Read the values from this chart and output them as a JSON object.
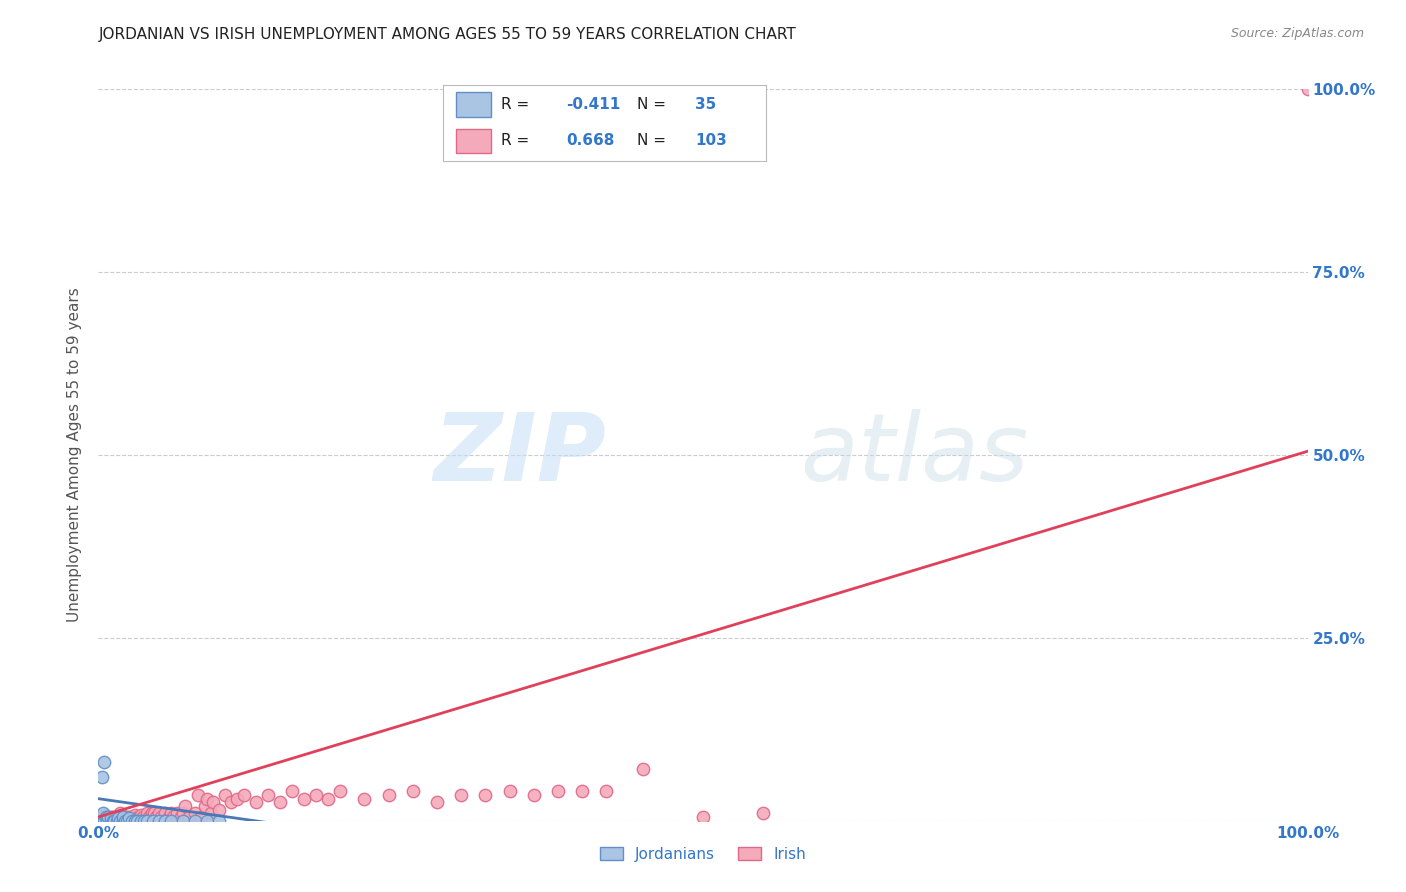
{
  "title": "JORDANIAN VS IRISH UNEMPLOYMENT AMONG AGES 55 TO 59 YEARS CORRELATION CHART",
  "source": "Source: ZipAtlas.com",
  "ylabel": "Unemployment Among Ages 55 to 59 years",
  "xlim": [
    0,
    1.0
  ],
  "ylim": [
    0,
    1.0
  ],
  "jordanian_color": "#aac4e4",
  "irish_color": "#f4aabb",
  "jordanian_edge_color": "#6090c8",
  "irish_edge_color": "#e06888",
  "trendline_jordan_color": "#4878b8",
  "trendline_irish_color": "#e0405a",
  "R_jordan": -0.411,
  "N_jordan": 35,
  "R_irish": 0.668,
  "N_irish": 103,
  "legend_label_jordan": "Jordanians",
  "legend_label_irish": "Irish",
  "watermark": "ZIPatlas",
  "grid_color": "#cccccc",
  "background_color": "#ffffff",
  "title_color": "#222222",
  "axis_label_color": "#555555",
  "tick_label_color": "#3377cc",
  "jordanian_points": [
    [
      0.0,
      0.0
    ],
    [
      0.003,
      0.0
    ],
    [
      0.004,
      0.01
    ],
    [
      0.005,
      0.0
    ],
    [
      0.006,
      0.005
    ],
    [
      0.007,
      0.0
    ],
    [
      0.008,
      0.005
    ],
    [
      0.01,
      0.0
    ],
    [
      0.01,
      0.003
    ],
    [
      0.012,
      0.0
    ],
    [
      0.013,
      0.0
    ],
    [
      0.015,
      0.0
    ],
    [
      0.016,
      0.003
    ],
    [
      0.018,
      0.0
    ],
    [
      0.02,
      0.0
    ],
    [
      0.02,
      0.005
    ],
    [
      0.022,
      0.0
    ],
    [
      0.024,
      0.0
    ],
    [
      0.025,
      0.003
    ],
    [
      0.028,
      0.0
    ],
    [
      0.03,
      0.0
    ],
    [
      0.032,
      0.0
    ],
    [
      0.035,
      0.0
    ],
    [
      0.038,
      0.0
    ],
    [
      0.04,
      0.0
    ],
    [
      0.045,
      0.0
    ],
    [
      0.05,
      0.0
    ],
    [
      0.055,
      0.0
    ],
    [
      0.06,
      0.0
    ],
    [
      0.07,
      0.0
    ],
    [
      0.08,
      0.0
    ],
    [
      0.09,
      0.0
    ],
    [
      0.1,
      0.0
    ],
    [
      0.003,
      0.06
    ],
    [
      0.005,
      0.08
    ]
  ],
  "irish_points": [
    [
      0.0,
      0.0
    ],
    [
      0.002,
      0.005
    ],
    [
      0.003,
      0.0
    ],
    [
      0.004,
      0.005
    ],
    [
      0.005,
      0.0
    ],
    [
      0.005,
      0.008
    ],
    [
      0.006,
      0.0
    ],
    [
      0.007,
      0.005
    ],
    [
      0.008,
      0.0
    ],
    [
      0.008,
      0.005
    ],
    [
      0.009,
      0.0
    ],
    [
      0.01,
      0.0
    ],
    [
      0.01,
      0.005
    ],
    [
      0.011,
      0.005
    ],
    [
      0.012,
      0.0
    ],
    [
      0.013,
      0.005
    ],
    [
      0.014,
      0.0
    ],
    [
      0.015,
      0.0
    ],
    [
      0.015,
      0.005
    ],
    [
      0.016,
      0.0
    ],
    [
      0.017,
      0.005
    ],
    [
      0.018,
      0.0
    ],
    [
      0.018,
      0.01
    ],
    [
      0.019,
      0.0
    ],
    [
      0.02,
      0.0
    ],
    [
      0.02,
      0.005
    ],
    [
      0.021,
      0.0
    ],
    [
      0.022,
      0.005
    ],
    [
      0.023,
      0.0
    ],
    [
      0.024,
      0.0
    ],
    [
      0.024,
      0.005
    ],
    [
      0.025,
      0.005
    ],
    [
      0.026,
      0.0
    ],
    [
      0.027,
      0.005
    ],
    [
      0.028,
      0.0
    ],
    [
      0.029,
      0.005
    ],
    [
      0.03,
      0.0
    ],
    [
      0.03,
      0.008
    ],
    [
      0.031,
      0.0
    ],
    [
      0.032,
      0.0
    ],
    [
      0.033,
      0.005
    ],
    [
      0.034,
      0.0
    ],
    [
      0.035,
      0.0
    ],
    [
      0.035,
      0.008
    ],
    [
      0.036,
      0.0
    ],
    [
      0.037,
      0.005
    ],
    [
      0.038,
      0.0
    ],
    [
      0.04,
      0.005
    ],
    [
      0.04,
      0.01
    ],
    [
      0.041,
      0.0
    ],
    [
      0.042,
      0.005
    ],
    [
      0.043,
      0.0
    ],
    [
      0.044,
      0.01
    ],
    [
      0.045,
      0.005
    ],
    [
      0.046,
      0.01
    ],
    [
      0.048,
      0.005
    ],
    [
      0.05,
      0.0
    ],
    [
      0.05,
      0.01
    ],
    [
      0.052,
      0.005
    ],
    [
      0.055,
      0.01
    ],
    [
      0.058,
      0.005
    ],
    [
      0.06,
      0.01
    ],
    [
      0.062,
      0.005
    ],
    [
      0.065,
      0.01
    ],
    [
      0.068,
      0.005
    ],
    [
      0.07,
      0.01
    ],
    [
      0.072,
      0.02
    ],
    [
      0.075,
      0.005
    ],
    [
      0.08,
      0.01
    ],
    [
      0.082,
      0.035
    ],
    [
      0.085,
      0.005
    ],
    [
      0.088,
      0.02
    ],
    [
      0.09,
      0.03
    ],
    [
      0.093,
      0.01
    ],
    [
      0.095,
      0.025
    ],
    [
      0.1,
      0.015
    ],
    [
      0.105,
      0.035
    ],
    [
      0.11,
      0.025
    ],
    [
      0.115,
      0.03
    ],
    [
      0.12,
      0.035
    ],
    [
      0.13,
      0.025
    ],
    [
      0.14,
      0.035
    ],
    [
      0.15,
      0.025
    ],
    [
      0.16,
      0.04
    ],
    [
      0.17,
      0.03
    ],
    [
      0.18,
      0.035
    ],
    [
      0.19,
      0.03
    ],
    [
      0.2,
      0.04
    ],
    [
      0.22,
      0.03
    ],
    [
      0.24,
      0.035
    ],
    [
      0.26,
      0.04
    ],
    [
      0.28,
      0.025
    ],
    [
      0.3,
      0.035
    ],
    [
      0.32,
      0.035
    ],
    [
      0.34,
      0.04
    ],
    [
      0.36,
      0.035
    ],
    [
      0.38,
      0.04
    ],
    [
      0.4,
      0.04
    ],
    [
      0.42,
      0.04
    ],
    [
      0.45,
      0.07
    ],
    [
      0.5,
      0.005
    ],
    [
      0.55,
      0.01
    ],
    [
      1.0,
      1.0
    ]
  ],
  "jordan_trend_x": [
    0.0,
    0.15
  ],
  "jordan_trend_y": [
    0.03,
    -0.005
  ],
  "irish_trend_x": [
    0.0,
    1.0
  ],
  "irish_trend_y": [
    0.005,
    0.505
  ]
}
